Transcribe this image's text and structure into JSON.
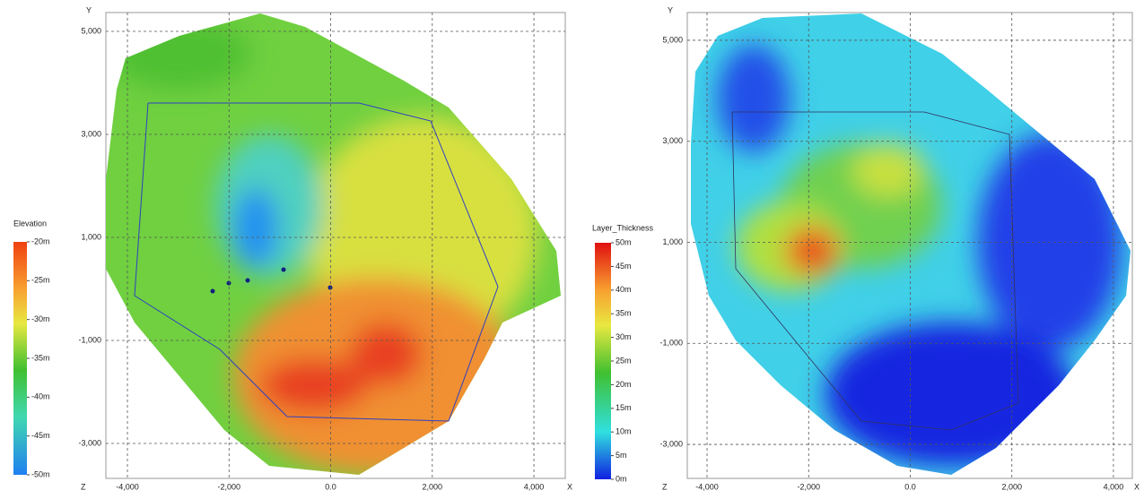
{
  "panels": [
    {
      "x_axis_label": "X",
      "y_axis_label": "Y",
      "z_label": "Z",
      "xlim": [
        -4424,
        4617
      ],
      "ylim": [
        -3678,
        5365
      ],
      "xticks": [
        {
          "value": -4000,
          "label": "-4,000"
        },
        {
          "value": -2000,
          "label": "-2,000"
        },
        {
          "value": 0,
          "label": "0.0"
        },
        {
          "value": 2000,
          "label": "2,000"
        },
        {
          "value": 4000,
          "label": "4,000"
        }
      ],
      "yticks": [
        {
          "value": 5000,
          "label": "5,000"
        },
        {
          "value": 3000,
          "label": "3,000"
        },
        {
          "value": 1000,
          "label": "1,000"
        },
        {
          "value": -1000,
          "label": "-1,000"
        },
        {
          "value": -3000,
          "label": "-3,000"
        }
      ],
      "colorbar": {
        "title": "Elevation",
        "lim": [
          -50,
          -20
        ],
        "ticks": [
          {
            "value": -20,
            "label": "-20m"
          },
          {
            "value": -25,
            "label": "-25m"
          },
          {
            "value": -30,
            "label": "-30m"
          },
          {
            "value": -35,
            "label": "-35m"
          },
          {
            "value": -40,
            "label": "-40m"
          },
          {
            "value": -45,
            "label": "-45m"
          },
          {
            "value": -50,
            "label": "-50m"
          }
        ]
      }
    },
    {
      "x_axis_label": "X",
      "y_axis_label": "Y",
      "z_label": "Z",
      "xlim": [
        -4389,
        4372
      ],
      "ylim": [
        -3673,
        5549
      ],
      "xticks": [
        {
          "value": -4000,
          "label": "-4,000"
        },
        {
          "value": -2000,
          "label": "-2,000"
        },
        {
          "value": 0,
          "label": "0.0"
        },
        {
          "value": 2000,
          "label": "2,000"
        },
        {
          "value": 4000,
          "label": "4,000"
        }
      ],
      "yticks": [
        {
          "value": 5000,
          "label": "5,000"
        },
        {
          "value": 3000,
          "label": "3,000"
        },
        {
          "value": 1000,
          "label": "1,000"
        },
        {
          "value": -1000,
          "label": "-1,000"
        },
        {
          "value": -3000,
          "label": "-3,000"
        }
      ],
      "colorbar": {
        "title": "Layer_Thickness",
        "lim": [
          0,
          50
        ],
        "ticks": [
          {
            "value": 50,
            "label": "50m"
          },
          {
            "value": 45,
            "label": "45m"
          },
          {
            "value": 40,
            "label": "40m"
          },
          {
            "value": 35,
            "label": "35m"
          },
          {
            "value": 30,
            "label": "30m"
          },
          {
            "value": 25,
            "label": "25m"
          },
          {
            "value": 20,
            "label": "20m"
          },
          {
            "value": 15,
            "label": "15m"
          },
          {
            "value": 10,
            "label": "10m"
          },
          {
            "value": 5,
            "label": "5m"
          },
          {
            "value": 0,
            "label": "0m"
          }
        ]
      }
    }
  ]
}
